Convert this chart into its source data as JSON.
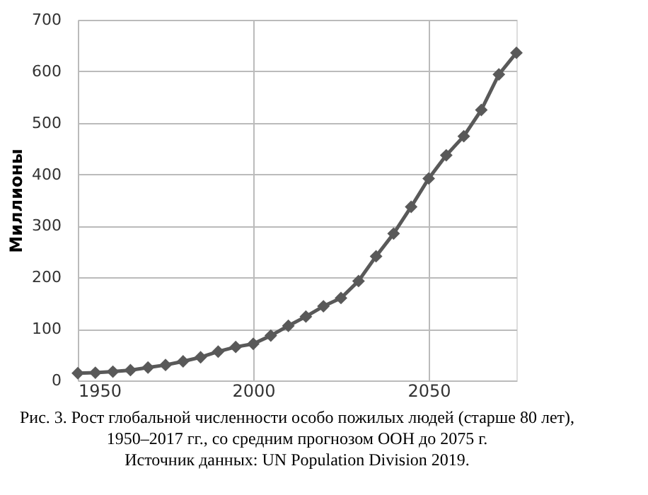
{
  "chart_data": {
    "type": "line",
    "ylabel": "Миллионы",
    "x": [
      1950,
      1955,
      1960,
      1965,
      1970,
      1975,
      1980,
      1985,
      1990,
      1995,
      2000,
      2005,
      2010,
      2015,
      2020,
      2025,
      2030,
      2035,
      2040,
      2045,
      2050,
      2055,
      2060,
      2065,
      2070,
      2075
    ],
    "series": [
      {
        "color": "#595959",
        "values": [
          14,
          15,
          17,
          20,
          25,
          30,
          37,
          45,
          56,
          65,
          71,
          87,
          106,
          124,
          144,
          160,
          193,
          241,
          285,
          337,
          392,
          437,
          474,
          525,
          594,
          636
        ]
      }
    ],
    "xlim": [
      1950,
      2075
    ],
    "xticks": [
      1950,
      2000,
      2050
    ],
    "ylim": [
      0,
      700
    ],
    "yticks": [
      0,
      100,
      200,
      300,
      400,
      500,
      600,
      700
    ],
    "grid": true,
    "marker": "diamond",
    "line_style": "solid",
    "annotations": [
      "Рис. 3. Рост глобальной численности особо пожилых людей (старше 80 лет), 1950–2017 гг., со средним прогнозом ООН до 2075 г.",
      "Источник данных: UN Population Division 2019."
    ]
  }
}
